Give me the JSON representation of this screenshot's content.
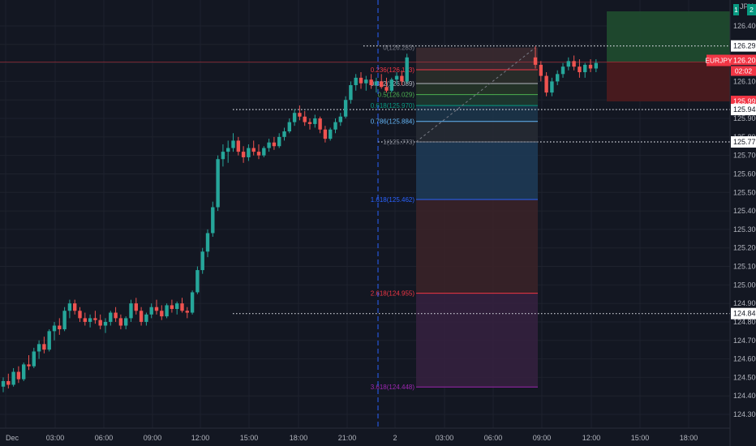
{
  "symbol": {
    "currency": "JPY",
    "badge": "1",
    "badge2": "2"
  },
  "time_axis": {
    "labels": [
      "Dec",
      "03:00",
      "06:00",
      "09:00",
      "12:00",
      "15:00",
      "18:00",
      "21:00",
      "2",
      "03:00",
      "06:00",
      "09:00",
      "12:00",
      "15:00",
      "18:00"
    ]
  },
  "price_axis": {
    "ticks": [
      "126.400",
      "126.300",
      "126.200",
      "126.100",
      "126.000",
      "125.900",
      "125.800",
      "125.700",
      "125.600",
      "125.500",
      "125.400",
      "125.300",
      "125.200",
      "125.100",
      "125.000",
      "124.900",
      "124.800",
      "124.700",
      "124.600",
      "124.500",
      "124.400",
      "124.300"
    ],
    "range": [
      124.25,
      126.47
    ]
  },
  "horizontal_levels": [
    {
      "price": 126.292,
      "label": "126.292"
    },
    {
      "price": 125.948,
      "label": "125.948"
    },
    {
      "price": 125.773,
      "label": "125.773"
    },
    {
      "price": 124.845,
      "label": "124.845"
    }
  ],
  "fib": {
    "levels": [
      {
        "ratio": 0,
        "price": 126.283,
        "label": "0(126.283)",
        "color": "#787b86",
        "fill": "#3b2a30"
      },
      {
        "ratio": 0.236,
        "price": 126.163,
        "label": "0.236(126.163)",
        "color": "#f23645",
        "fill": "#2b2f2a"
      },
      {
        "ratio": 0.382,
        "price": 126.089,
        "label": "0.382(126.089)",
        "color": "#b2b5be",
        "fill": "#263528"
      },
      {
        "ratio": 0.5,
        "price": 126.029,
        "label": "0.5(126.029)",
        "color": "#4caf50",
        "fill": "#1e3a30"
      },
      {
        "ratio": 0.618,
        "price": 125.97,
        "label": "0.618(125.970)",
        "color": "#089981",
        "fill": "#1c3449"
      },
      {
        "ratio": 0.786,
        "price": 125.884,
        "label": "0.786(125.884)",
        "color": "#64b5f6",
        "fill": "#262a33"
      },
      {
        "ratio": 1,
        "price": 125.773,
        "label": "1(125.773)",
        "color": "#787b86",
        "fill": "#1e3a55"
      },
      {
        "ratio": 1.618,
        "price": 125.462,
        "label": "1.618(125.462)",
        "color": "#2962ff",
        "fill": "#3a2228"
      },
      {
        "ratio": 2.618,
        "price": 124.955,
        "label": "2.618(124.955)",
        "color": "#f23645",
        "fill": "#34203e"
      },
      {
        "ratio": 3.618,
        "price": 124.448,
        "label": "3.618(124.448)",
        "color": "#9c27b0",
        "fill": null
      }
    ]
  },
  "position": {
    "entry": 126.205,
    "target": 126.4,
    "stop": 125.992,
    "target_color": "#1f4a2e",
    "stop_color": "#4a1a1f"
  },
  "price_tags": [
    {
      "price": 126.292,
      "label": "126.292",
      "bg": "#ffffff",
      "fg": "#131722"
    },
    {
      "price": 126.205,
      "label": "126.205",
      "bg": "#f23645",
      "fg": "#ffffff"
    },
    {
      "price": 126.202,
      "label": "126.202",
      "bg": "#1e222d",
      "fg": "#ffffff"
    },
    {
      "price": 125.992,
      "label": "125.992",
      "bg": "#f23645",
      "fg": "#ffffff"
    },
    {
      "price": 125.948,
      "label": "125.948",
      "bg": "#ffffff",
      "fg": "#131722"
    },
    {
      "price": 125.773,
      "label": "125.773",
      "bg": "#ffffff",
      "fg": "#131722"
    },
    {
      "price": 124.845,
      "label": "124.845",
      "bg": "#ffffff",
      "fg": "#131722"
    }
  ],
  "current": {
    "symbol": "EURJPY",
    "price": 126.205,
    "countdown": "02:02"
  },
  "colors": {
    "up": "#26a69a",
    "down": "#ef5350",
    "grid": "#1e222d",
    "axis_text": "#b2b5be"
  },
  "chart_data": {
    "type": "candlestick",
    "series": [
      {
        "name": "EURJPY",
        "ohlc": [
          [
            124.45,
            124.5,
            124.42,
            124.48
          ],
          [
            124.48,
            124.52,
            124.44,
            124.46
          ],
          [
            124.46,
            124.55,
            124.45,
            124.53
          ],
          [
            124.53,
            124.56,
            124.47,
            124.49
          ],
          [
            124.49,
            124.58,
            124.48,
            124.57
          ],
          [
            124.57,
            124.62,
            124.54,
            124.56
          ],
          [
            124.56,
            124.66,
            124.55,
            124.64
          ],
          [
            124.64,
            124.7,
            124.6,
            124.68
          ],
          [
            124.68,
            124.72,
            124.63,
            124.65
          ],
          [
            124.65,
            124.76,
            124.64,
            124.75
          ],
          [
            124.75,
            124.8,
            124.7,
            124.78
          ],
          [
            124.78,
            124.82,
            124.73,
            124.76
          ],
          [
            124.76,
            124.88,
            124.75,
            124.86
          ],
          [
            124.86,
            124.92,
            124.82,
            124.9
          ],
          [
            124.9,
            124.92,
            124.84,
            124.86
          ],
          [
            124.86,
            124.88,
            124.8,
            124.82
          ],
          [
            124.82,
            124.85,
            124.78,
            124.8
          ],
          [
            124.8,
            124.84,
            124.77,
            124.82
          ],
          [
            124.82,
            124.86,
            124.79,
            124.81
          ],
          [
            124.81,
            124.84,
            124.76,
            124.78
          ],
          [
            124.78,
            124.82,
            124.74,
            124.8
          ],
          [
            124.8,
            124.86,
            124.78,
            124.85
          ],
          [
            124.85,
            124.88,
            124.8,
            124.82
          ],
          [
            124.82,
            124.84,
            124.76,
            124.78
          ],
          [
            124.78,
            124.83,
            124.76,
            124.82
          ],
          [
            124.82,
            124.92,
            124.8,
            124.9
          ],
          [
            124.9,
            124.93,
            124.84,
            124.86
          ],
          [
            124.86,
            124.88,
            124.78,
            124.8
          ],
          [
            124.8,
            124.85,
            124.78,
            124.84
          ],
          [
            124.84,
            124.9,
            124.82,
            124.88
          ],
          [
            124.88,
            124.92,
            124.84,
            124.86
          ],
          [
            124.86,
            124.89,
            124.81,
            124.83
          ],
          [
            124.83,
            124.9,
            124.82,
            124.89
          ],
          [
            124.89,
            124.92,
            124.85,
            124.87
          ],
          [
            124.87,
            124.91,
            124.84,
            124.9
          ],
          [
            124.9,
            124.93,
            124.85,
            124.86
          ],
          [
            124.86,
            124.88,
            124.82,
            124.85
          ],
          [
            124.85,
            124.97,
            124.84,
            124.96
          ],
          [
            124.96,
            125.1,
            124.95,
            125.08
          ],
          [
            125.08,
            125.2,
            125.06,
            125.18
          ],
          [
            125.18,
            125.3,
            125.15,
            125.28
          ],
          [
            125.28,
            125.45,
            125.26,
            125.42
          ],
          [
            125.42,
            125.7,
            125.4,
            125.68
          ],
          [
            125.68,
            125.76,
            125.64,
            125.72
          ],
          [
            125.72,
            125.78,
            125.66,
            125.74
          ],
          [
            125.74,
            125.82,
            125.72,
            125.78
          ],
          [
            125.78,
            125.8,
            125.7,
            125.72
          ],
          [
            125.72,
            125.75,
            125.66,
            125.69
          ],
          [
            125.69,
            125.76,
            125.67,
            125.74
          ],
          [
            125.74,
            125.78,
            125.7,
            125.72
          ],
          [
            125.72,
            125.76,
            125.68,
            125.7
          ],
          [
            125.7,
            125.75,
            125.69,
            125.74
          ],
          [
            125.74,
            125.79,
            125.72,
            125.77
          ],
          [
            125.77,
            125.8,
            125.73,
            125.75
          ],
          [
            125.75,
            125.82,
            125.74,
            125.8
          ],
          [
            125.8,
            125.85,
            125.78,
            125.83
          ],
          [
            125.83,
            125.9,
            125.82,
            125.88
          ],
          [
            125.88,
            125.95,
            125.86,
            125.93
          ],
          [
            125.93,
            125.97,
            125.89,
            125.91
          ],
          [
            125.91,
            125.94,
            125.86,
            125.88
          ],
          [
            125.88,
            125.9,
            125.84,
            125.87
          ],
          [
            125.87,
            125.92,
            125.85,
            125.9
          ],
          [
            125.9,
            125.91,
            125.82,
            125.84
          ],
          [
            125.84,
            125.86,
            125.77,
            125.79
          ],
          [
            125.79,
            125.85,
            125.78,
            125.84
          ],
          [
            125.84,
            125.9,
            125.82,
            125.88
          ],
          [
            125.88,
            125.93,
            125.86,
            125.91
          ],
          [
            125.91,
            126.02,
            125.9,
            126.0
          ],
          [
            126.0,
            126.1,
            125.98,
            126.08
          ],
          [
            126.08,
            126.14,
            126.05,
            126.12
          ],
          [
            126.12,
            126.15,
            126.06,
            126.09
          ],
          [
            126.09,
            126.13,
            126.05,
            126.11
          ],
          [
            126.11,
            126.14,
            126.06,
            126.08
          ],
          [
            126.08,
            126.12,
            126.04,
            126.1
          ],
          [
            126.1,
            126.14,
            126.06,
            126.07
          ],
          [
            126.07,
            126.12,
            126.04,
            126.05
          ],
          [
            126.05,
            126.12,
            126.04,
            126.11
          ],
          [
            126.11,
            126.15,
            126.08,
            126.13
          ],
          [
            126.13,
            126.16,
            126.08,
            126.1
          ],
          [
            126.1,
            126.25,
            126.09,
            126.23
          ],
          [
            126.23,
            126.29,
            126.17,
            126.19
          ],
          [
            126.19,
            126.21,
            126.1,
            126.13
          ],
          [
            126.13,
            126.15,
            126.02,
            126.04
          ],
          [
            126.04,
            126.12,
            126.02,
            126.1
          ],
          [
            126.1,
            126.16,
            126.08,
            126.14
          ],
          [
            126.14,
            126.2,
            126.12,
            126.18
          ],
          [
            126.18,
            126.23,
            126.16,
            126.21
          ],
          [
            126.21,
            126.24,
            126.16,
            126.18
          ],
          [
            126.18,
            126.22,
            126.12,
            126.15
          ],
          [
            126.15,
            126.2,
            126.12,
            126.19
          ],
          [
            126.19,
            126.22,
            126.15,
            126.17
          ],
          [
            126.17,
            126.22,
            126.15,
            126.2
          ]
        ]
      }
    ]
  }
}
